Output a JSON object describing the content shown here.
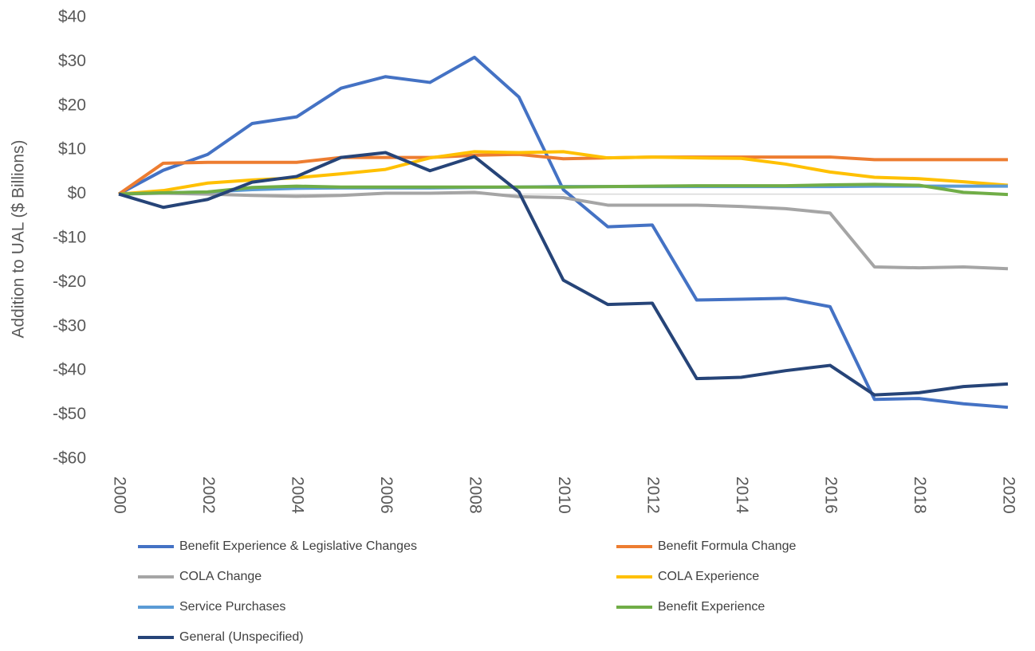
{
  "chart_data": {
    "type": "line",
    "y_label": "Addition to UAL ($ Billions)",
    "x": [
      2000,
      2001,
      2002,
      2003,
      2004,
      2005,
      2006,
      2007,
      2008,
      2009,
      2010,
      2011,
      2012,
      2013,
      2014,
      2015,
      2016,
      2017,
      2018,
      2019,
      2020
    ],
    "xlim": [
      2000,
      2020
    ],
    "xticks": [
      2000,
      2002,
      2004,
      2006,
      2008,
      2010,
      2012,
      2014,
      2016,
      2018,
      2020
    ],
    "ylim": [
      -60,
      40
    ],
    "yticks": [
      {
        "value": 40,
        "label": "$40"
      },
      {
        "value": 30,
        "label": "$30"
      },
      {
        "value": 20,
        "label": "$20"
      },
      {
        "value": 10,
        "label": "$10"
      },
      {
        "value": 0,
        "label": "$0"
      },
      {
        "value": -10,
        "label": "-$10"
      },
      {
        "value": -20,
        "label": "-$20"
      },
      {
        "value": -30,
        "label": "-$30"
      },
      {
        "value": -40,
        "label": "-$40"
      },
      {
        "value": -50,
        "label": "-$50"
      },
      {
        "value": -60,
        "label": "-$60"
      }
    ],
    "grid": false,
    "legend": "bottom",
    "series": [
      {
        "name": "Benefit Experience & Legislative Changes",
        "color": "#4472c4",
        "values": [
          0,
          5.4,
          9,
          16,
          17.5,
          24,
          26.6,
          25.3,
          31,
          22,
          1,
          -7.4,
          -7,
          -24,
          -23.8,
          -23.6,
          -25.5,
          -46.5,
          -46.3,
          -47.5,
          -48.3
        ]
      },
      {
        "name": "Benefit Formula Change",
        "color": "#ed7d31",
        "values": [
          0,
          7,
          7.2,
          7.2,
          7.2,
          8.3,
          8.3,
          8.3,
          8.8,
          9,
          8,
          8.2,
          8.4,
          8.4,
          8.4,
          8.4,
          8.4,
          7.8,
          7.8,
          7.8,
          7.8
        ]
      },
      {
        "name": "COLA Change",
        "color": "#a5a5a5",
        "values": [
          0,
          0.2,
          0,
          -0.3,
          -0.5,
          -0.3,
          0.2,
          0.2,
          0.4,
          -0.6,
          -0.8,
          -2.5,
          -2.5,
          -2.5,
          -2.8,
          -3.3,
          -4.3,
          -16.5,
          -16.7,
          -16.5,
          -16.9
        ]
      },
      {
        "name": "COLA Experience",
        "color": "#ffc000",
        "values": [
          0,
          0.8,
          2.5,
          3.2,
          3.7,
          4.6,
          5.6,
          8.2,
          9.6,
          9.4,
          9.6,
          8.2,
          8.4,
          8.2,
          8.1,
          6.8,
          5,
          3.8,
          3.5,
          2.8,
          2
        ]
      },
      {
        "name": "Service Purchases",
        "color": "#5b9bd5",
        "values": [
          0,
          0.3,
          0.5,
          1,
          1.3,
          1.4,
          1.4,
          1.4,
          1.5,
          1.6,
          1.7,
          1.7,
          1.7,
          1.7,
          1.7,
          1.7,
          1.7,
          1.8,
          1.8,
          1.8,
          1.8
        ]
      },
      {
        "name": "Benefit Experience",
        "color": "#70ad47",
        "values": [
          0,
          0.3,
          0.5,
          1.5,
          1.8,
          1.6,
          1.6,
          1.6,
          1.6,
          1.6,
          1.6,
          1.7,
          1.8,
          1.9,
          1.9,
          1.9,
          2.1,
          2.2,
          2,
          0.4,
          -0.1
        ]
      },
      {
        "name": "General (Unspecified)",
        "color": "#264478",
        "values": [
          0,
          -3,
          -1.2,
          2.7,
          4,
          8.3,
          9.4,
          5.3,
          8.5,
          0.5,
          -19.5,
          -25,
          -24.7,
          -41.8,
          -41.5,
          -40,
          -38.8,
          -45.5,
          -45,
          -43.6,
          -43
        ]
      }
    ]
  }
}
